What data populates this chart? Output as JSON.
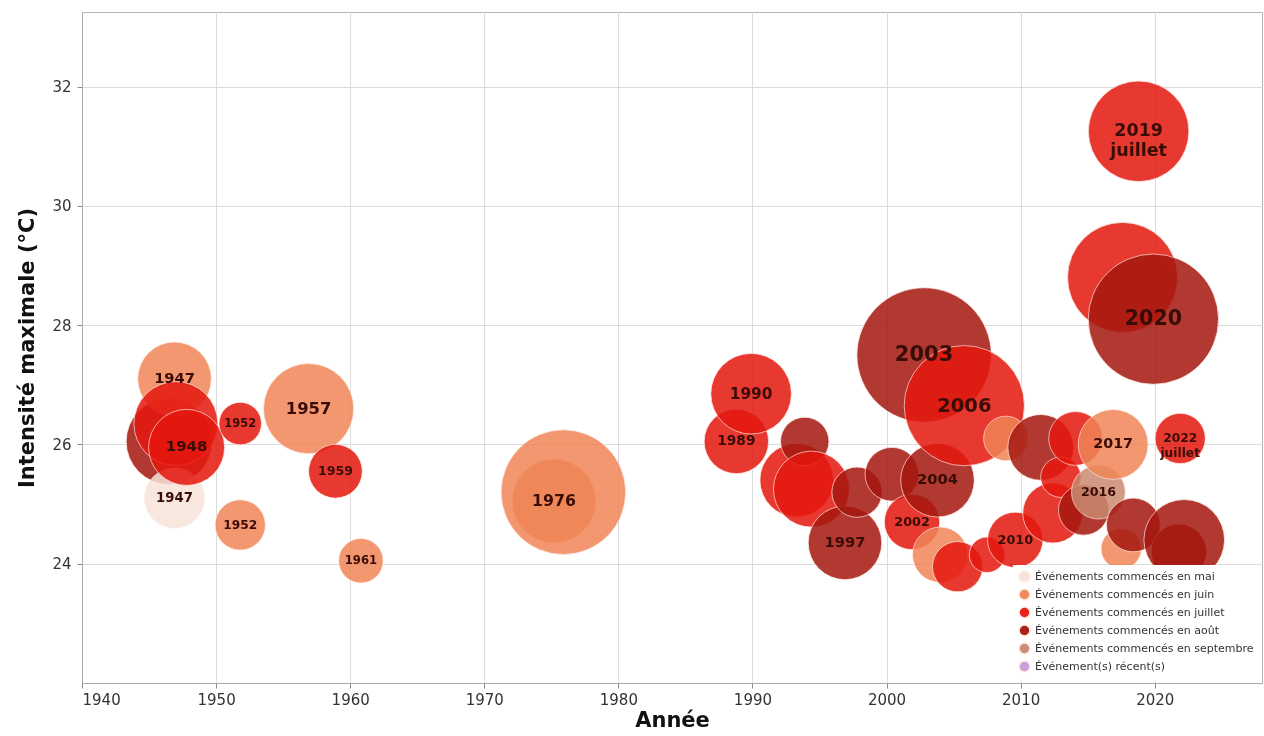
{
  "chart_data": {
    "type": "bubble",
    "xlabel": "Année",
    "ylabel": "Intensité maximale (°C)",
    "xlim": [
      1940,
      2028
    ],
    "xticks": [
      1940,
      1950,
      1960,
      1970,
      1980,
      1990,
      2000,
      2010,
      2020
    ],
    "ylim": [
      22,
      33.25
    ],
    "yticks": [
      24,
      26,
      28,
      30,
      32
    ],
    "grid": true,
    "legend": "bottom right",
    "series": [
      {
        "name": "Événements commencés en mai",
        "color": "#f6e3da",
        "x": [
          1946.9
        ],
        "values": [
          25.1
        ],
        "sizes": [
          0.2
        ]
      },
      {
        "name": "Événements commencés en juin",
        "color": "#f08556",
        "x": [
          1946.9,
          1951.8,
          1956.9,
          1960.8,
          1975.9,
          1975.2,
          2004.0,
          2008.9,
          2016.9,
          2017.5
        ],
        "values": [
          27.1,
          24.65,
          26.6,
          24.05,
          25.2,
          25.05,
          24.15,
          26.1,
          26.0,
          24.25
        ],
        "sizes": [
          0.3,
          0.14,
          0.45,
          0.11,
          0.86,
          0.39,
          0.17,
          0.11,
          0.27,
          0.09
        ]
      },
      {
        "name": "Événements commencés en juillet",
        "color": "#e5170e",
        "x": [
          1947.0,
          1947.8,
          1951.8,
          1958.9,
          1989.9,
          1988.8,
          1993.3,
          1994.4,
          2001.9,
          2005.8,
          2005.3,
          2007.5,
          2009.6,
          2014.1,
          2013.0,
          2012.4,
          2018.8,
          2017.6,
          2021.9
        ],
        "values": [
          26.35,
          25.95,
          26.35,
          25.55,
          26.85,
          26.05,
          25.4,
          25.25,
          24.7,
          26.65,
          23.95,
          24.15,
          24.4,
          26.1,
          25.45,
          24.85,
          31.25,
          28.8,
          26.1
        ],
        "sizes": [
          0.39,
          0.32,
          0.1,
          0.16,
          0.36,
          0.23,
          0.3,
          0.32,
          0.17,
          0.8,
          0.14,
          0.07,
          0.17,
          0.16,
          0.09,
          0.2,
          0.56,
          0.67,
          0.14
        ]
      },
      {
        "name": "Événements commencés en août",
        "color": "#a5170f",
        "x": [
          1946.5,
          1993.9,
          1997.8,
          1996.9,
          2000.4,
          2002.8,
          2003.8,
          2011.5,
          2014.7,
          2018.4,
          2019.9,
          2022.2,
          2021.8
        ],
        "values": [
          26.05,
          26.05,
          25.2,
          24.35,
          25.5,
          27.5,
          25.4,
          25.95,
          24.9,
          24.65,
          28.1,
          24.4,
          24.2
        ],
        "sizes": [
          0.41,
          0.13,
          0.14,
          0.3,
          0.16,
          1.0,
          0.3,
          0.24,
          0.14,
          0.16,
          0.94,
          0.36,
          0.17
        ]
      },
      {
        "name": "Événements commencés en septembre",
        "color": "#c98a70",
        "x": [
          2015.8
        ],
        "values": [
          25.2
        ],
        "sizes": [
          0.16
        ]
      },
      {
        "name": "Événement(s) récent(s)",
        "color": "#c99ad8"
      }
    ],
    "annotations": [
      {
        "text": "1947",
        "x": 1946.9,
        "y": 27.1
      },
      {
        "text": "1948",
        "x": 1947.8,
        "y": 25.95
      },
      {
        "text": "1952",
        "x": 1951.8,
        "y": 26.35
      },
      {
        "text": "1957",
        "x": 1956.9,
        "y": 26.6
      },
      {
        "text": "1959",
        "x": 1958.9,
        "y": 25.55
      },
      {
        "text": "1947",
        "x": 1946.9,
        "y": 25.1
      },
      {
        "text": "1952",
        "x": 1951.8,
        "y": 24.65
      },
      {
        "text": "1961",
        "x": 1960.8,
        "y": 24.05
      },
      {
        "text": "1976",
        "x": 1975.2,
        "y": 25.05
      },
      {
        "text": "1990",
        "x": 1989.9,
        "y": 26.85
      },
      {
        "text": "1989",
        "x": 1988.8,
        "y": 26.05
      },
      {
        "text": "1997",
        "x": 1996.9,
        "y": 24.35
      },
      {
        "text": "2003",
        "x": 2002.8,
        "y": 27.5
      },
      {
        "text": "2006",
        "x": 2005.8,
        "y": 26.65
      },
      {
        "text": "2004",
        "x": 2003.8,
        "y": 25.4
      },
      {
        "text": "2002",
        "x": 2001.9,
        "y": 24.7
      },
      {
        "text": "2010",
        "x": 2009.6,
        "y": 24.4
      },
      {
        "text": "2017",
        "x": 2016.9,
        "y": 26.0
      },
      {
        "text": "2016",
        "x": 2015.8,
        "y": 25.2
      },
      {
        "text": "2019\njuillet",
        "x": 2018.8,
        "y": 31.25
      },
      {
        "text": "2020",
        "x": 2019.9,
        "y": 28.1
      },
      {
        "text": "2022\njuillet",
        "x": 2021.9,
        "y": 26.1
      }
    ]
  }
}
